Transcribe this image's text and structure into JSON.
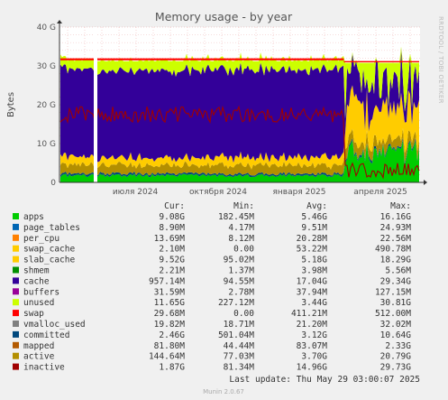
{
  "chart_data": {
    "type": "area",
    "title": "Memory usage - by year",
    "ylabel": "Bytes",
    "xlabel": "",
    "side_text": "RRDTOOL / TOBI OETIKER",
    "ylim": [
      0,
      40
    ],
    "y_ticks": [
      "0",
      "10 G",
      "20 G",
      "30 G",
      "40 G"
    ],
    "x_ticks": [
      "июля 2024",
      "октября 2024",
      "января 2025",
      "апреля 2025"
    ],
    "columns": [
      "Cur:",
      "Min:",
      "Avg:",
      "Max:"
    ],
    "legend": [
      {
        "name": "apps",
        "color": "#00cc00",
        "cur": "9.08G",
        "min": "182.45M",
        "avg": "5.46G",
        "max": "16.16G"
      },
      {
        "name": "page_tables",
        "color": "#0066b3",
        "cur": "8.90M",
        "min": "4.17M",
        "avg": "9.51M",
        "max": "24.93M"
      },
      {
        "name": "per_cpu",
        "color": "#ff8000",
        "cur": "13.69M",
        "min": "8.12M",
        "avg": "20.28M",
        "max": "22.56M"
      },
      {
        "name": "swap_cache",
        "color": "#ffcc00",
        "cur": "2.10M",
        "min": "0.00",
        "avg": "53.22M",
        "max": "490.78M"
      },
      {
        "name": "slab_cache",
        "color": "#ffcc00",
        "cur": "9.52G",
        "min": "95.02M",
        "avg": "5.18G",
        "max": "18.29G"
      },
      {
        "name": "shmem",
        "color": "#008f00",
        "cur": "2.21M",
        "min": "1.37M",
        "avg": "3.98M",
        "max": "5.56M"
      },
      {
        "name": "cache",
        "color": "#330099",
        "cur": "957.14M",
        "min": "94.55M",
        "avg": "17.04G",
        "max": "29.34G"
      },
      {
        "name": "buffers",
        "color": "#990099",
        "cur": "31.59M",
        "min": "2.78M",
        "avg": "37.94M",
        "max": "127.15M"
      },
      {
        "name": "unused",
        "color": "#ccff00",
        "cur": "11.65G",
        "min": "227.12M",
        "avg": "3.44G",
        "max": "30.81G"
      },
      {
        "name": "swap",
        "color": "#ff0000",
        "cur": "29.68M",
        "min": "0.00",
        "avg": "411.21M",
        "max": "512.00M"
      },
      {
        "name": "vmalloc_used",
        "color": "#808080",
        "cur": "19.82M",
        "min": "18.71M",
        "avg": "21.20M",
        "max": "32.02M"
      },
      {
        "name": "committed",
        "color": "#00487d",
        "cur": "2.46G",
        "min": "501.04M",
        "avg": "3.12G",
        "max": "10.64G"
      },
      {
        "name": "mapped",
        "color": "#b35a00",
        "cur": "81.80M",
        "min": "44.44M",
        "avg": "83.07M",
        "max": "2.33G"
      },
      {
        "name": "active",
        "color": "#b38f00",
        "cur": "144.64M",
        "min": "77.03M",
        "avg": "3.70G",
        "max": "20.79G"
      },
      {
        "name": "inactive",
        "color": "#a00000",
        "cur": "1.87G",
        "min": "81.34M",
        "avg": "14.96G",
        "max": "29.73G"
      }
    ],
    "grid": true,
    "last_update": "Last update: Thu May 29 03:00:07 2025",
    "footer": "Munin 2.0.67"
  }
}
